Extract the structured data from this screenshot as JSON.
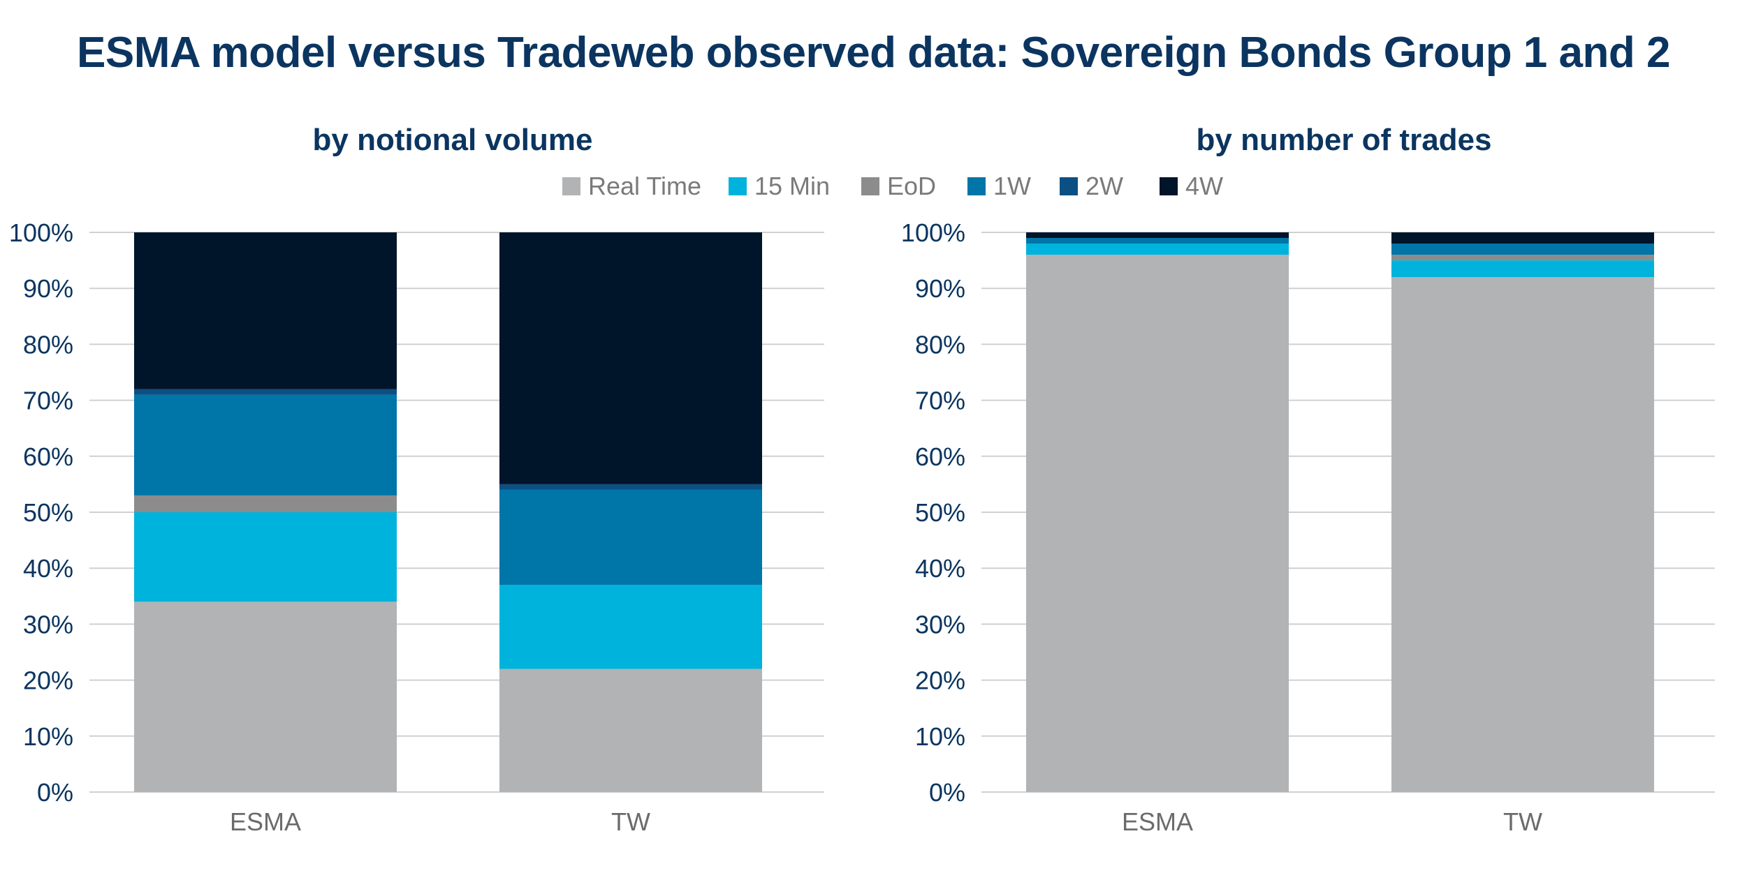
{
  "title": "ESMA model versus Tradeweb observed data: Sovereign Bonds Group 1 and 2",
  "legend": [
    "Real Time",
    "15 Min",
    "EoD",
    "1W",
    "2W",
    "4W"
  ],
  "colors": {
    "Real Time": "#b1b3b4",
    "15 Min": "#00b3dc",
    "EoD": "#8c8c8c",
    "1W": "#0075a8",
    "2W": "#0c5083",
    "4W": "#00142a",
    "title": "#0b3560",
    "grid": "#d0d0d0"
  },
  "chart_data": [
    {
      "type": "bar",
      "stacked": true,
      "title": "by notional volume",
      "categories": [
        "ESMA",
        "TW"
      ],
      "yticks": [
        "0%",
        "10%",
        "20%",
        "30%",
        "40%",
        "50%",
        "60%",
        "70%",
        "80%",
        "90%",
        "100%"
      ],
      "ylim": [
        0,
        100
      ],
      "grid": true,
      "legend_position": "top",
      "series": [
        {
          "name": "Real Time",
          "values": [
            34,
            22
          ]
        },
        {
          "name": "15 Min",
          "values": [
            16,
            15
          ]
        },
        {
          "name": "EoD",
          "values": [
            3,
            0
          ]
        },
        {
          "name": "1W",
          "values": [
            18,
            17
          ]
        },
        {
          "name": "2W",
          "values": [
            1,
            1
          ]
        },
        {
          "name": "4W",
          "values": [
            28,
            45
          ]
        }
      ]
    },
    {
      "type": "bar",
      "stacked": true,
      "title": "by number of trades",
      "categories": [
        "ESMA",
        "TW"
      ],
      "yticks": [
        "0%",
        "10%",
        "20%",
        "30%",
        "40%",
        "50%",
        "60%",
        "70%",
        "80%",
        "90%",
        "100%"
      ],
      "ylim": [
        0,
        100
      ],
      "grid": true,
      "legend_position": "top",
      "series": [
        {
          "name": "Real Time",
          "values": [
            96,
            92
          ]
        },
        {
          "name": "15 Min",
          "values": [
            2,
            3
          ]
        },
        {
          "name": "EoD",
          "values": [
            0,
            1
          ]
        },
        {
          "name": "1W",
          "values": [
            1,
            2
          ]
        },
        {
          "name": "2W",
          "values": [
            0,
            0
          ]
        },
        {
          "name": "4W",
          "values": [
            1,
            2
          ]
        }
      ]
    }
  ]
}
